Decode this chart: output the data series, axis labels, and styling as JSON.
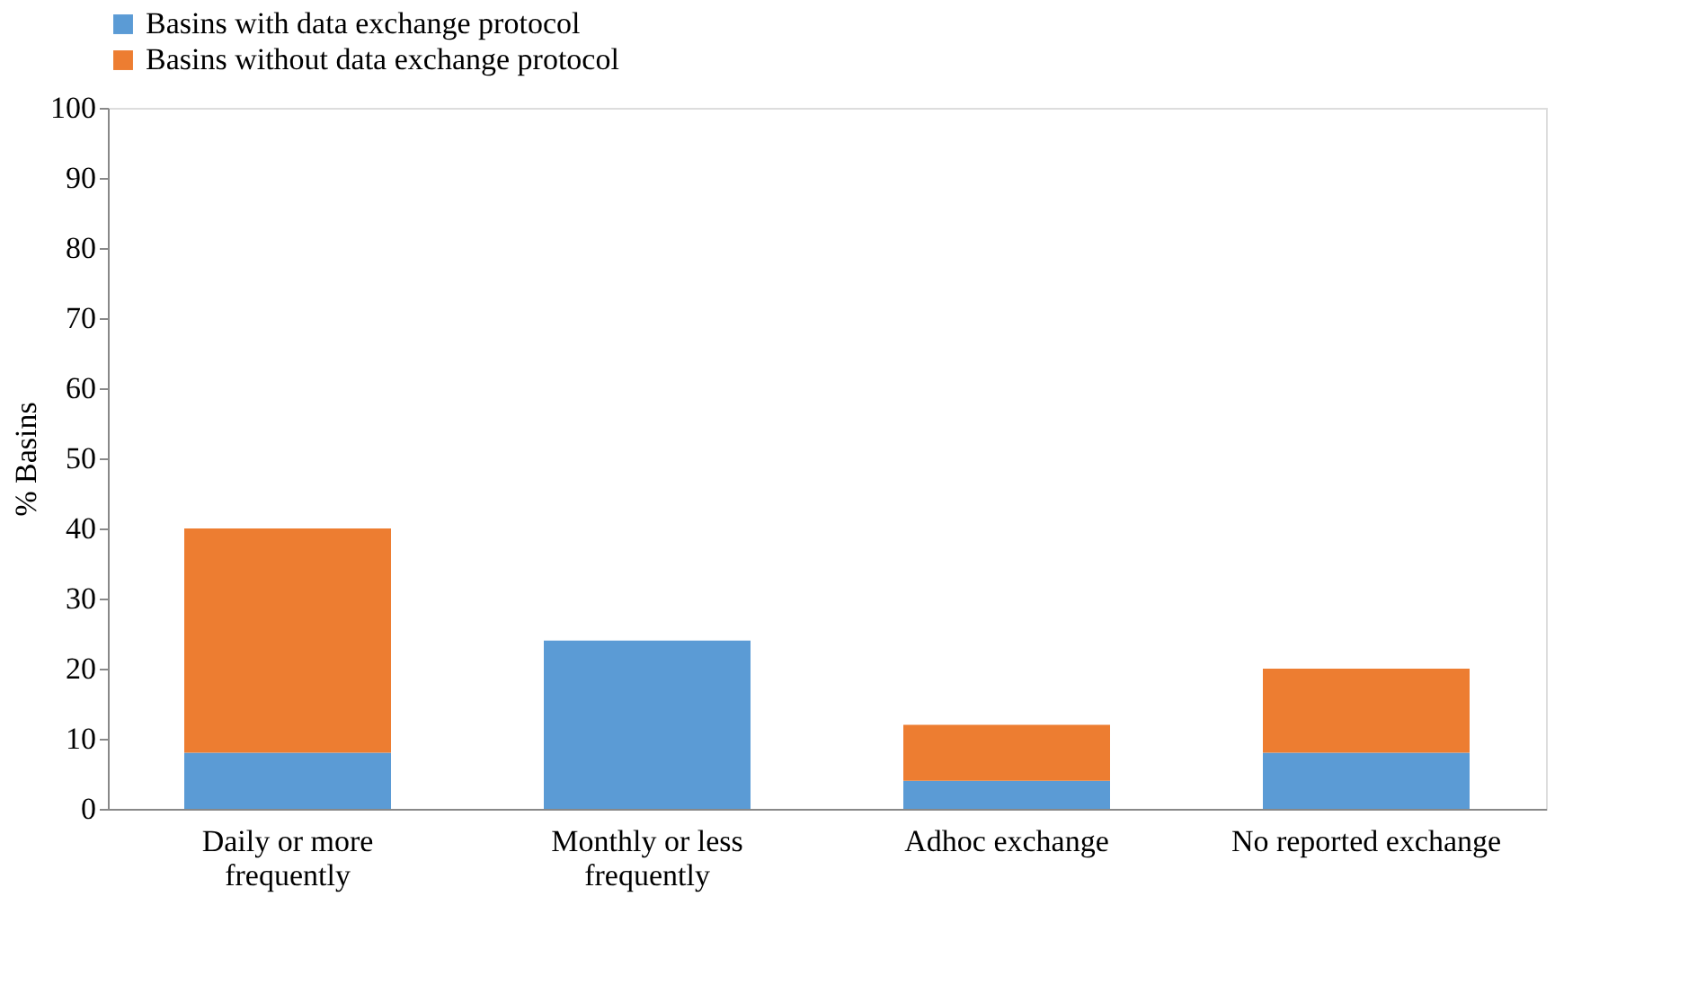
{
  "chart_data": {
    "type": "bar",
    "stacked": true,
    "ylabel": "% Basins",
    "categories": [
      "Daily or more frequently",
      "Monthly or less frequently",
      "Adhoc exchange",
      "No reported exchange"
    ],
    "series": [
      {
        "name": "Basins with data exchange protocol",
        "color": "#5b9bd5",
        "values": [
          8,
          24,
          4,
          8
        ]
      },
      {
        "name": "Basins without data exchange protocol",
        "color": "#ed7d31",
        "values": [
          32,
          null,
          8,
          12
        ]
      }
    ],
    "ylim": [
      0,
      100
    ],
    "yticks": [
      0,
      10,
      20,
      30,
      40,
      50,
      60,
      70,
      80,
      90,
      100
    ],
    "grid": false,
    "legend": "top"
  }
}
